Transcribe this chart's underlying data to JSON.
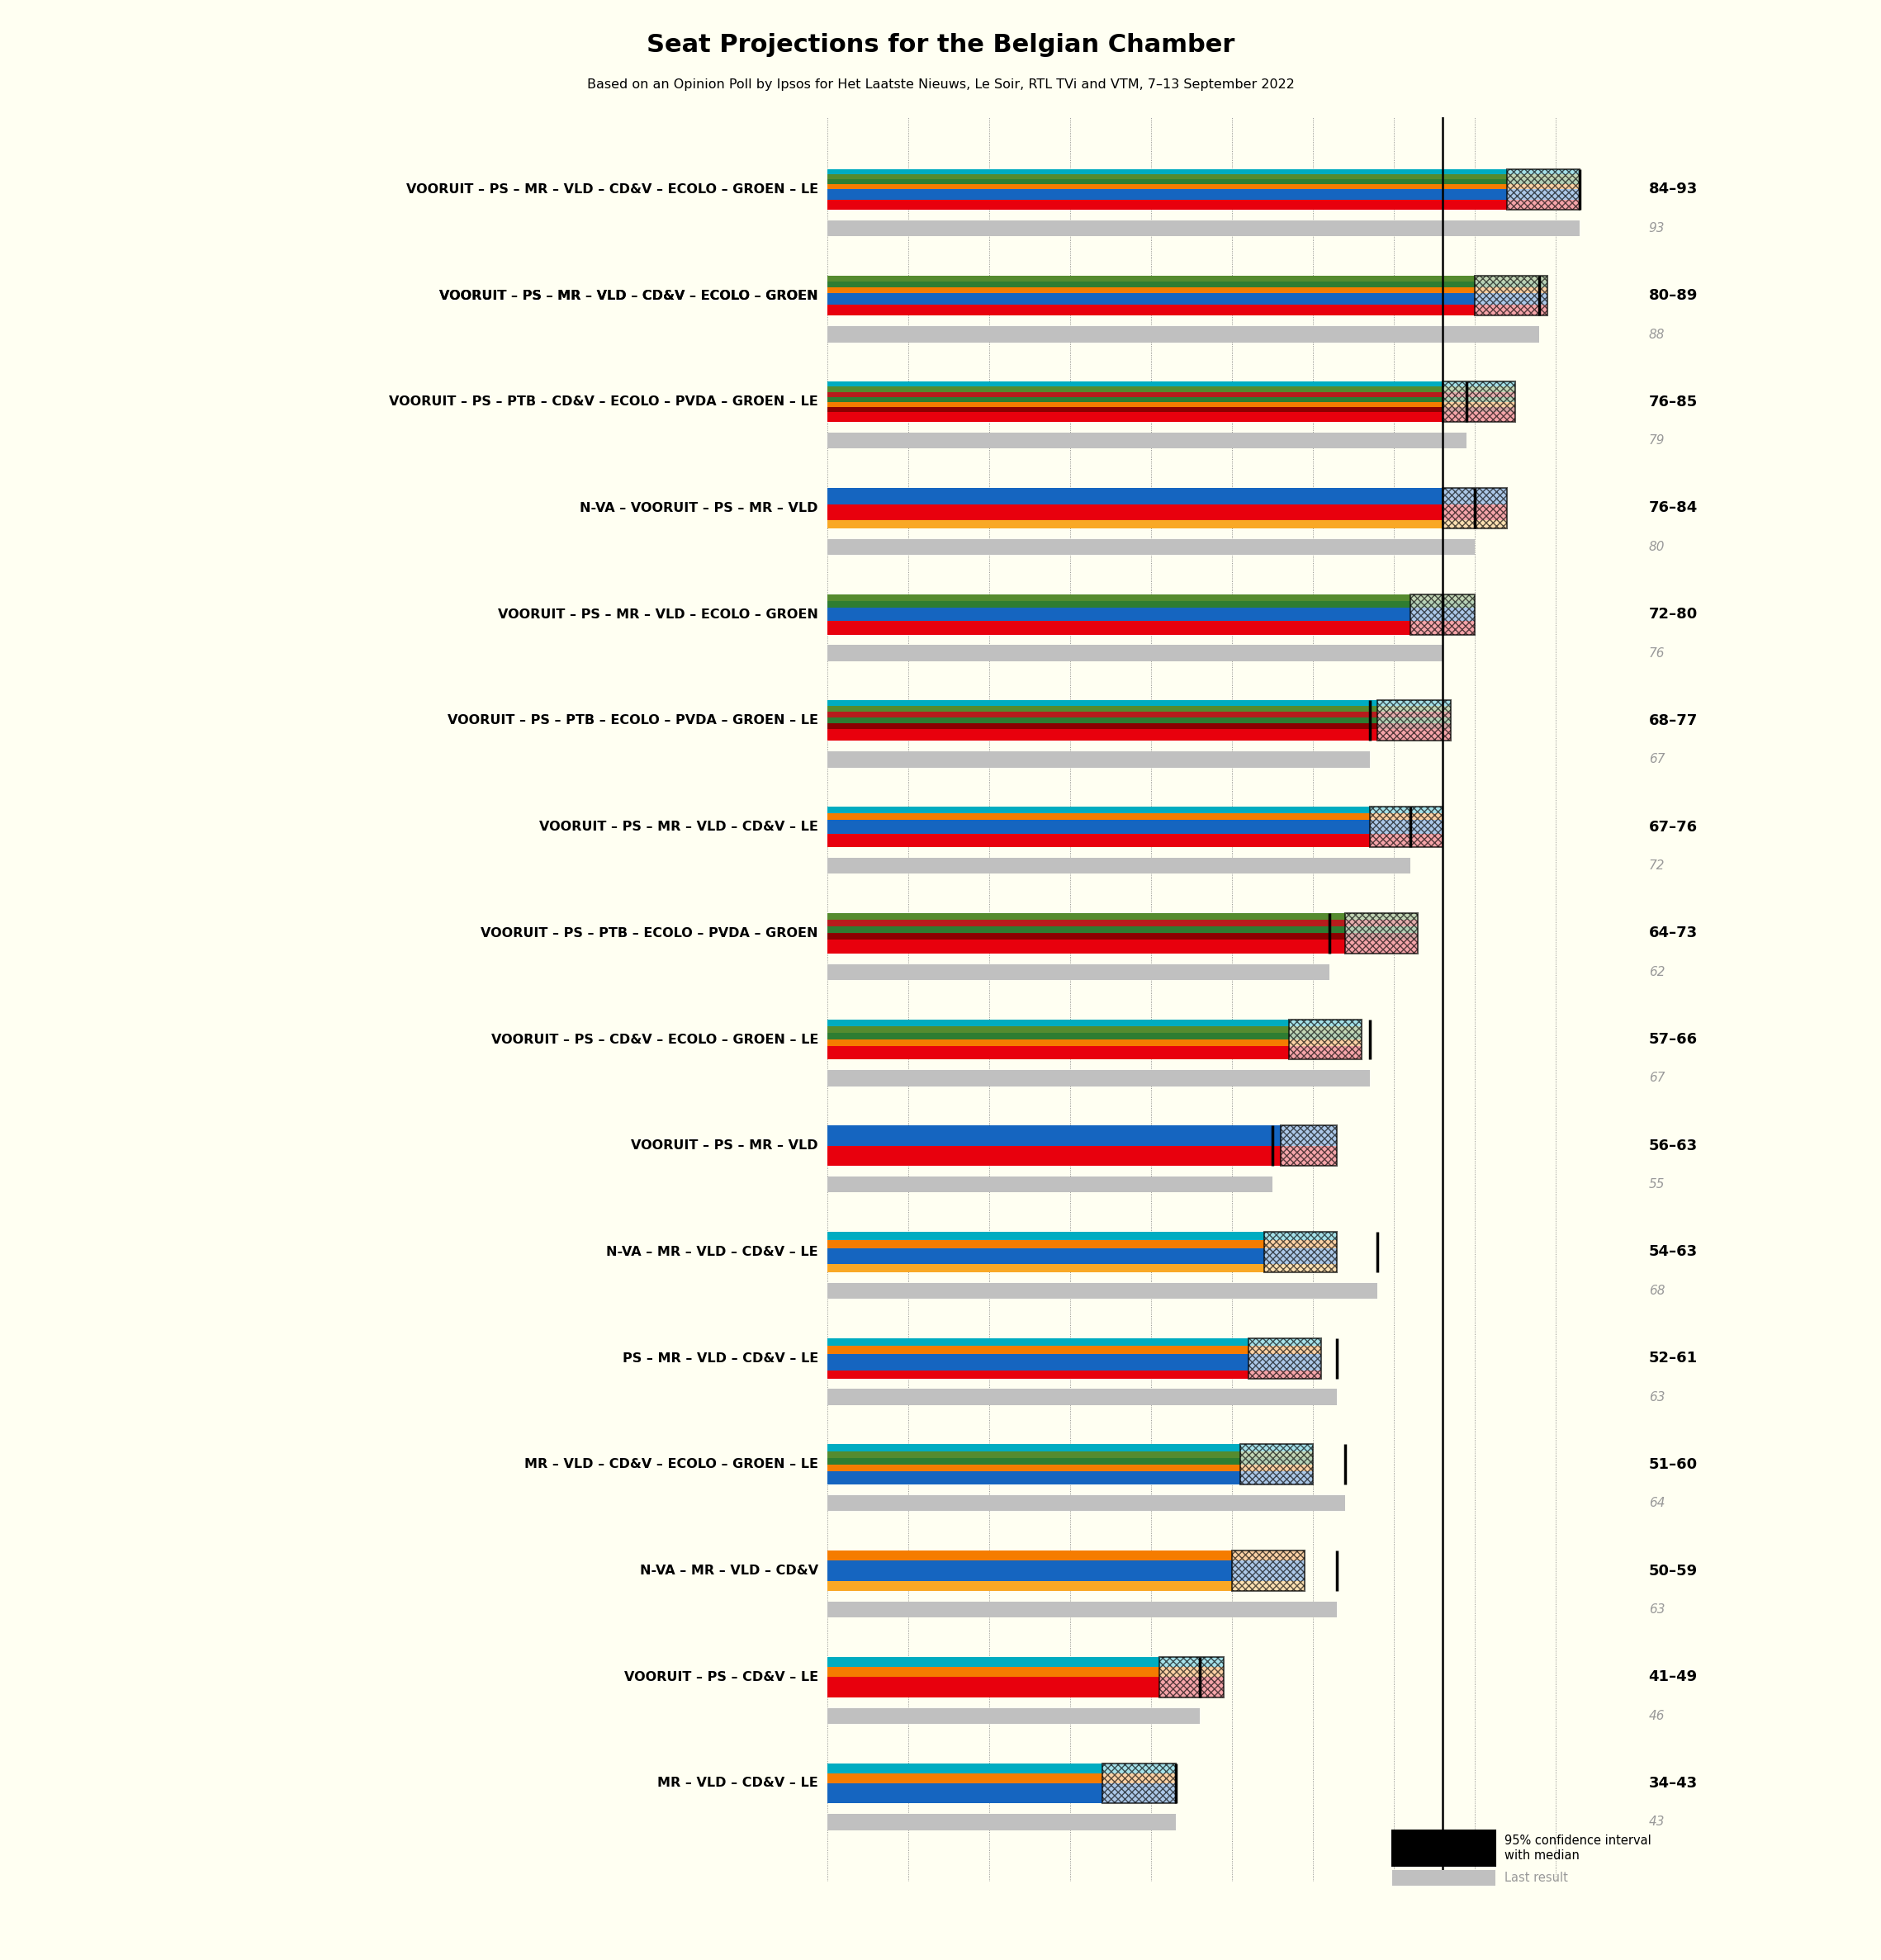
{
  "title": "Seat Projections for the Belgian Chamber",
  "subtitle": "Based on an Opinion Poll by Ipsos for Het Laatste Nieuws, Le Soir, RTL TVi and VTM, 7–13 September 2022",
  "background_color": "#fffff2",
  "coalitions": [
    {
      "name": "VOORUIT – PS – MR – VLD – CD&V – ECOLO – GROEN – LE",
      "underline": false,
      "median": 93,
      "ci_low": 84,
      "ci_high": 93,
      "last_result": 93,
      "label": "84–93",
      "parties": [
        "VOORUIT",
        "PS",
        "MR",
        "VLD",
        "CD&V",
        "ECOLO",
        "GROEN",
        "LE"
      ]
    },
    {
      "name": "VOORUIT – PS – MR – VLD – CD&V – ECOLO – GROEN",
      "underline": true,
      "median": 88,
      "ci_low": 80,
      "ci_high": 89,
      "last_result": 88,
      "label": "80–89",
      "parties": [
        "VOORUIT",
        "PS",
        "MR",
        "VLD",
        "CD&V",
        "ECOLO",
        "GROEN"
      ]
    },
    {
      "name": "VOORUIT – PS – PTB – CD&V – ECOLO – PVDA – GROEN – LE",
      "underline": false,
      "median": 79,
      "ci_low": 76,
      "ci_high": 85,
      "last_result": 79,
      "label": "76–85",
      "parties": [
        "VOORUIT",
        "PS",
        "PTB",
        "CD&V",
        "ECOLO",
        "PVDA",
        "GROEN",
        "LE"
      ]
    },
    {
      "name": "N-VA – VOORUIT – PS – MR – VLD",
      "underline": false,
      "median": 80,
      "ci_low": 76,
      "ci_high": 84,
      "last_result": 80,
      "label": "76–84",
      "parties": [
        "N-VA",
        "VOORUIT",
        "PS",
        "MR",
        "VLD"
      ]
    },
    {
      "name": "VOORUIT – PS – MR – VLD – ECOLO – GROEN",
      "underline": false,
      "median": 76,
      "ci_low": 72,
      "ci_high": 80,
      "last_result": 76,
      "label": "72–80",
      "parties": [
        "VOORUIT",
        "PS",
        "MR",
        "VLD",
        "ECOLO",
        "GROEN"
      ]
    },
    {
      "name": "VOORUIT – PS – PTB – ECOLO – PVDA – GROEN – LE",
      "underline": false,
      "median": 67,
      "ci_low": 68,
      "ci_high": 77,
      "last_result": 67,
      "label": "68–77",
      "parties": [
        "VOORUIT",
        "PS",
        "PTB",
        "ECOLO",
        "PVDA",
        "GROEN",
        "LE"
      ]
    },
    {
      "name": "VOORUIT – PS – MR – VLD – CD&V – LE",
      "underline": false,
      "median": 72,
      "ci_low": 67,
      "ci_high": 76,
      "last_result": 72,
      "label": "67–76",
      "parties": [
        "VOORUIT",
        "PS",
        "MR",
        "VLD",
        "CD&V",
        "LE"
      ]
    },
    {
      "name": "VOORUIT – PS – PTB – ECOLO – PVDA – GROEN",
      "underline": false,
      "median": 62,
      "ci_low": 64,
      "ci_high": 73,
      "last_result": 62,
      "label": "64–73",
      "parties": [
        "VOORUIT",
        "PS",
        "PTB",
        "ECOLO",
        "PVDA",
        "GROEN"
      ]
    },
    {
      "name": "VOORUIT – PS – CD&V – ECOLO – GROEN – LE",
      "underline": false,
      "median": 67,
      "ci_low": 57,
      "ci_high": 66,
      "last_result": 67,
      "label": "57–66",
      "parties": [
        "VOORUIT",
        "PS",
        "CD&V",
        "ECOLO",
        "GROEN",
        "LE"
      ]
    },
    {
      "name": "VOORUIT – PS – MR – VLD",
      "underline": false,
      "median": 55,
      "ci_low": 56,
      "ci_high": 63,
      "last_result": 55,
      "label": "56–63",
      "parties": [
        "VOORUIT",
        "PS",
        "MR",
        "VLD"
      ]
    },
    {
      "name": "N-VA – MR – VLD – CD&V – LE",
      "underline": false,
      "median": 68,
      "ci_low": 54,
      "ci_high": 63,
      "last_result": 68,
      "label": "54–63",
      "parties": [
        "N-VA",
        "MR",
        "VLD",
        "CD&V",
        "LE"
      ]
    },
    {
      "name": "PS – MR – VLD – CD&V – LE",
      "underline": false,
      "median": 63,
      "ci_low": 52,
      "ci_high": 61,
      "last_result": 63,
      "label": "52–61",
      "parties": [
        "PS",
        "MR",
        "VLD",
        "CD&V",
        "LE"
      ]
    },
    {
      "name": "MR – VLD – CD&V – ECOLO – GROEN – LE",
      "underline": false,
      "median": 64,
      "ci_low": 51,
      "ci_high": 60,
      "last_result": 64,
      "label": "51–60",
      "parties": [
        "MR",
        "VLD",
        "CD&V",
        "ECOLO",
        "GROEN",
        "LE"
      ]
    },
    {
      "name": "N-VA – MR – VLD – CD&V",
      "underline": false,
      "median": 63,
      "ci_low": 50,
      "ci_high": 59,
      "last_result": 63,
      "label": "50–59",
      "parties": [
        "N-VA",
        "MR",
        "VLD",
        "CD&V"
      ]
    },
    {
      "name": "VOORUIT – PS – CD&V – LE",
      "underline": false,
      "median": 46,
      "ci_low": 41,
      "ci_high": 49,
      "last_result": 46,
      "label": "41–49",
      "parties": [
        "VOORUIT",
        "PS",
        "CD&V",
        "LE"
      ]
    },
    {
      "name": "MR – VLD – CD&V – LE",
      "underline": false,
      "median": 43,
      "ci_low": 34,
      "ci_high": 43,
      "last_result": 43,
      "label": "34–43",
      "parties": [
        "MR",
        "VLD",
        "CD&V",
        "LE"
      ]
    }
  ],
  "party_color_map": {
    "VOORUIT": "#E8000D",
    "PS": "#E8000D",
    "MR": "#1565C0",
    "VLD": "#1565C0",
    "CD&V": "#F57C00",
    "ECOLO": "#2E7D32",
    "GROEN": "#558B2F",
    "LE": "#00ACC1",
    "N-VA": "#F9A825",
    "PTB": "#8B0000",
    "PVDA": "#B71C1C"
  },
  "majority_line": 76,
  "xmin": 0,
  "xmax": 100,
  "tick_interval": 10,
  "last_result_color": "#999999"
}
